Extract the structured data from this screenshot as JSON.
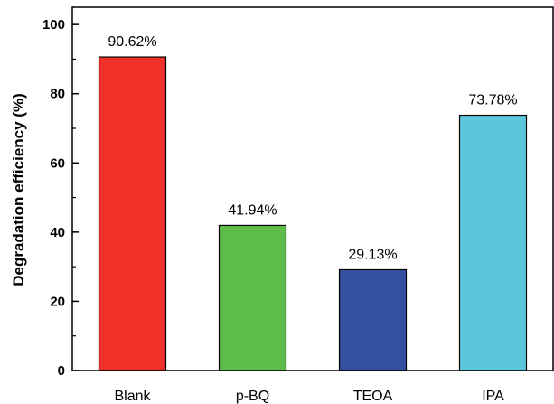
{
  "chart_data": {
    "type": "bar",
    "title": "",
    "xlabel": "",
    "ylabel": "Degradation efficiency (%)",
    "ylim": [
      0,
      105
    ],
    "yticks": [
      0,
      20,
      40,
      60,
      80,
      100
    ],
    "grid": false,
    "legend": "none",
    "categories": [
      "Blank",
      "p-BQ",
      "TEOA",
      "IPA"
    ],
    "values": [
      90.62,
      41.94,
      29.13,
      73.78
    ],
    "data_labels": [
      "90.62%",
      "41.94%",
      "29.13%",
      "73.78%"
    ],
    "colors": [
      "#ef3129",
      "#5dbd4b",
      "#3550a0",
      "#5bc7dc"
    ]
  }
}
